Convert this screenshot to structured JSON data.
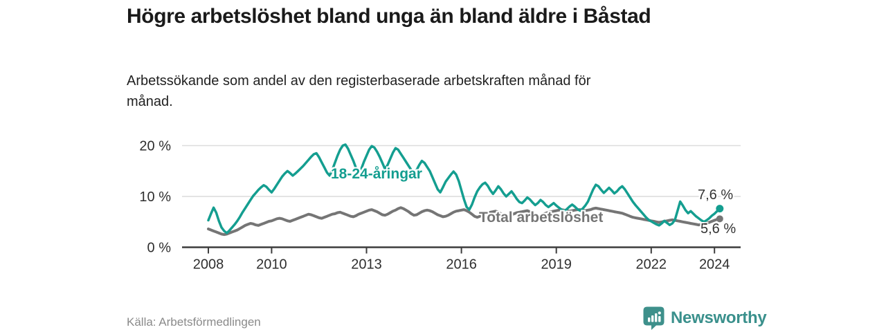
{
  "header": {
    "title": "Högre arbetslöshet bland unga än bland äldre i Båstad",
    "subtitle": "Arbetssökande som andel av den registerbaserade arbetskraften månad för månad."
  },
  "footer": {
    "source": "Källa: Arbetsförmedlingen",
    "brand": "Newsworthy"
  },
  "colors": {
    "accent_teal": "#149e90",
    "series_gray": "#757575",
    "logo_teal": "#3e908b",
    "gridline": "#dcdcdc",
    "axis": "#3c3c3c",
    "tick_label": "#2e2e2e",
    "annotation": "#333333"
  },
  "chart_data": {
    "type": "line",
    "title": "Högre arbetslöshet bland unga än bland äldre i Båstad",
    "subtitle": "Arbetssökande som andel av den registerbaserade arbetskraften månad för månad.",
    "x_unit": "month",
    "x_start": "2008-01",
    "x_end": "2024-03",
    "ylim": [
      0,
      21
    ],
    "grid": "horizontal",
    "legend_position": "inline-labels",
    "y_ticks": [
      "0 %",
      "10 %",
      "20 %"
    ],
    "y_tick_values": [
      0,
      10,
      20
    ],
    "x_tick_labels": [
      "2008",
      "2010",
      "2013",
      "2016",
      "2019",
      "2022",
      "2024"
    ],
    "x_tick_years": [
      2008,
      2010,
      2013,
      2016,
      2019,
      2022,
      2024
    ],
    "series": [
      {
        "name": "18-24-åringar",
        "color": "#149e90",
        "end_label": "7,6 %",
        "end_value": 7.6,
        "values": [
          5.3,
          6.6,
          7.8,
          6.8,
          5.2,
          3.9,
          3.2,
          2.8,
          3.3,
          3.9,
          4.5,
          5.2,
          6.0,
          6.9,
          7.7,
          8.5,
          9.3,
          10.1,
          10.7,
          11.3,
          11.8,
          12.2,
          11.9,
          11.3,
          10.8,
          11.5,
          12.3,
          13.1,
          13.9,
          14.5,
          15.0,
          14.6,
          14.1,
          14.5,
          15.0,
          15.5,
          16.0,
          16.6,
          17.2,
          17.8,
          18.3,
          18.5,
          17.7,
          16.7,
          15.7,
          14.7,
          14.1,
          15.2,
          16.6,
          18.0,
          19.2,
          20.0,
          20.2,
          19.4,
          18.2,
          17.0,
          15.6,
          14.6,
          15.4,
          16.8,
          18.0,
          19.2,
          19.9,
          19.6,
          18.8,
          17.8,
          16.6,
          15.4,
          16.2,
          17.4,
          18.6,
          19.5,
          19.2,
          18.4,
          17.6,
          16.8,
          16.0,
          15.2,
          14.6,
          15.2,
          16.2,
          17.0,
          16.6,
          15.8,
          15.0,
          13.8,
          12.6,
          11.4,
          10.8,
          11.8,
          12.9,
          13.6,
          14.3,
          14.9,
          14.3,
          13.0,
          11.2,
          9.4,
          7.9,
          7.4,
          8.4,
          9.8,
          11.0,
          11.8,
          12.4,
          12.7,
          12.1,
          11.2,
          10.5,
          11.2,
          12.0,
          11.4,
          10.6,
          10.0,
          10.5,
          11.0,
          10.3,
          9.5,
          8.9,
          8.7,
          9.2,
          9.8,
          9.4,
          8.8,
          8.3,
          8.7,
          9.3,
          8.9,
          8.3,
          7.9,
          8.3,
          8.7,
          8.2,
          7.8,
          7.4,
          7.1,
          7.5,
          8.0,
          8.4,
          8.0,
          7.5,
          7.2,
          7.6,
          8.2,
          9.0,
          10.2,
          11.4,
          12.3,
          12.0,
          11.3,
          10.7,
          11.2,
          11.7,
          11.2,
          10.6,
          11.0,
          11.6,
          12.0,
          11.4,
          10.6,
          9.8,
          9.0,
          8.3,
          7.7,
          7.1,
          6.5,
          5.9,
          5.4,
          5.1,
          4.8,
          4.5,
          4.3,
          4.7,
          5.2,
          4.8,
          4.4,
          4.7,
          5.4,
          7.2,
          9.0,
          8.2,
          7.3,
          6.7,
          7.1,
          6.6,
          6.1,
          5.7,
          5.3,
          5.0,
          5.3,
          5.7,
          6.2,
          6.6,
          7.1,
          7.6
        ]
      },
      {
        "name": "Total arbetslöshet",
        "color": "#757575",
        "end_label": "5,6 %",
        "end_value": 5.6,
        "values": [
          3.6,
          3.4,
          3.2,
          3.0,
          2.8,
          2.6,
          2.5,
          2.6,
          2.8,
          3.0,
          3.2,
          3.4,
          3.7,
          4.0,
          4.3,
          4.5,
          4.7,
          4.6,
          4.4,
          4.3,
          4.5,
          4.7,
          4.9,
          5.1,
          5.2,
          5.4,
          5.6,
          5.7,
          5.6,
          5.4,
          5.2,
          5.1,
          5.3,
          5.5,
          5.7,
          5.9,
          6.1,
          6.3,
          6.5,
          6.4,
          6.2,
          6.0,
          5.8,
          5.7,
          5.9,
          6.1,
          6.3,
          6.5,
          6.6,
          6.8,
          6.9,
          6.7,
          6.5,
          6.3,
          6.1,
          6.0,
          6.2,
          6.5,
          6.7,
          6.9,
          7.1,
          7.3,
          7.4,
          7.2,
          7.0,
          6.7,
          6.4,
          6.3,
          6.5,
          6.8,
          7.1,
          7.3,
          7.6,
          7.8,
          7.6,
          7.3,
          7.0,
          6.6,
          6.3,
          6.4,
          6.7,
          7.0,
          7.2,
          7.3,
          7.2,
          7.0,
          6.7,
          6.4,
          6.2,
          6.0,
          6.1,
          6.3,
          6.6,
          6.9,
          7.1,
          7.2,
          7.3,
          7.4,
          7.2,
          6.9,
          6.5,
          6.1,
          5.9,
          6.1,
          6.4,
          6.6,
          6.8,
          6.9,
          7.0,
          7.1,
          6.9,
          6.6,
          6.3,
          6.1,
          6.2,
          6.4,
          6.6,
          6.8,
          6.9,
          7.0,
          7.1,
          7.2,
          7.0,
          6.7,
          6.4,
          6.2,
          6.3,
          6.5,
          6.7,
          6.9,
          7.0,
          7.1,
          7.2,
          7.3,
          7.4,
          7.3,
          7.2,
          7.1,
          7.2,
          7.3,
          7.4,
          7.4,
          7.3,
          7.2,
          7.3,
          7.4,
          7.6,
          7.7,
          7.6,
          7.5,
          7.4,
          7.3,
          7.2,
          7.1,
          7.0,
          6.9,
          6.8,
          6.7,
          6.5,
          6.3,
          6.1,
          5.9,
          5.8,
          5.7,
          5.6,
          5.5,
          5.4,
          5.3,
          5.2,
          5.1,
          5.0,
          4.9,
          5.0,
          5.1,
          5.2,
          5.3,
          5.4,
          5.3,
          5.2,
          5.1,
          5.0,
          4.9,
          4.8,
          4.7,
          4.6,
          4.5,
          4.4,
          4.5,
          4.6,
          4.7,
          4.9,
          5.1,
          5.3,
          5.5,
          5.6
        ]
      }
    ]
  }
}
